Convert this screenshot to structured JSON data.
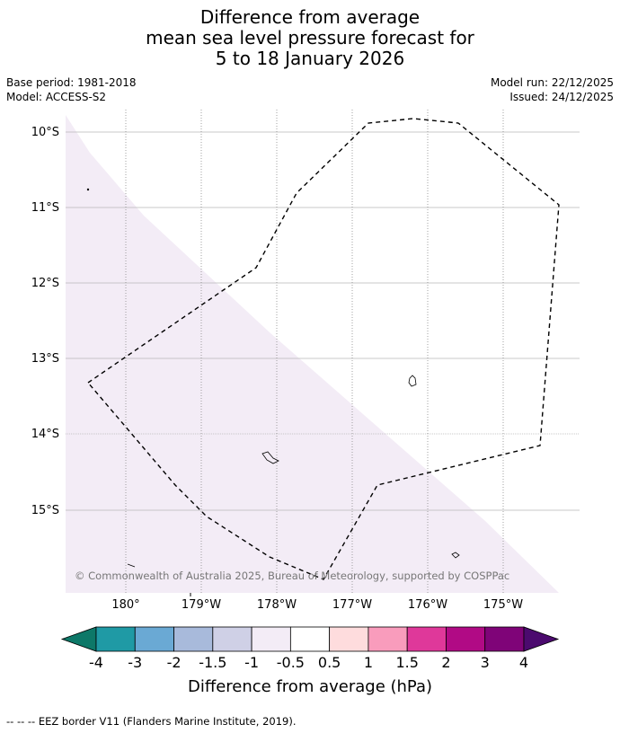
{
  "title": {
    "line1": "Difference from average",
    "line2": "mean sea level pressure forecast for",
    "line3": "5 to 18 January 2026"
  },
  "meta": {
    "base_period": "Base period: 1981-2018",
    "model": "Model: ACCESS-S2",
    "model_run": "Model run: 22/12/2025",
    "issued": "Issued: 24/12/2025"
  },
  "map": {
    "lon_labels": [
      "180°",
      "179°W",
      "178°W",
      "177°W",
      "176°W",
      "175°W"
    ],
    "lat_labels": [
      "10°S",
      "11°S",
      "12°S",
      "13°S",
      "14°S",
      "15°S"
    ],
    "copyright": "© Commonwealth of Australia 2025, Bureau of Meteorology, supported by COSPPac",
    "shading_color": "#f3ecf6",
    "eez_style": "dashed"
  },
  "colorbar": {
    "title": "Difference from average (hPa)",
    "ticks": [
      "-4",
      "-3",
      "-2",
      "-1.5",
      "-1",
      "-0.5",
      "0.5",
      "1",
      "1.5",
      "2",
      "3",
      "4"
    ],
    "colors": [
      "#0d7868",
      "#1f9aa5",
      "#6aa9d4",
      "#a8badb",
      "#cfd0e6",
      "#f3ecf6",
      "#ffffff",
      "#fedcdd",
      "#f99cbc",
      "#df389a",
      "#b10a85",
      "#7f0478",
      "#4b0a6e"
    ]
  },
  "footer": "--  --  -- EEZ border V11 (Flanders Marine Institute, 2019)."
}
